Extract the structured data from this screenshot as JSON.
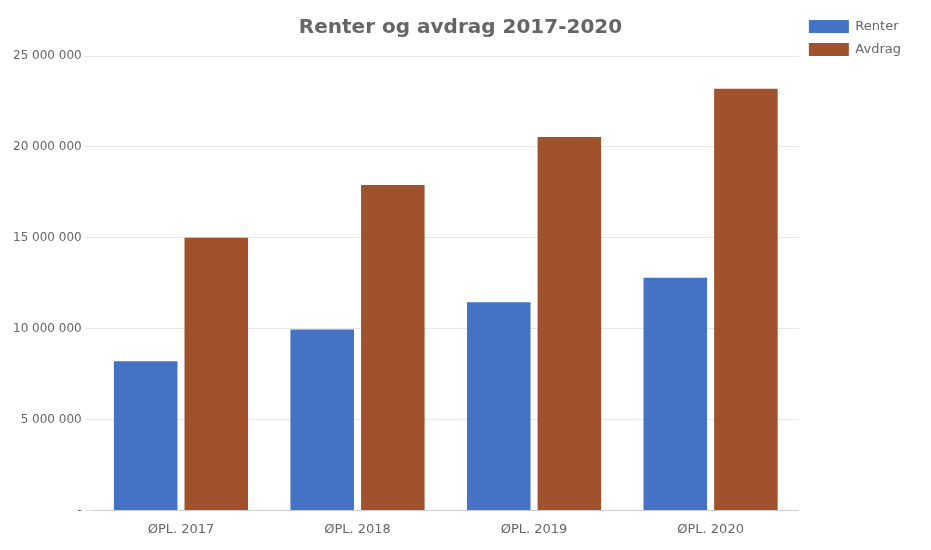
{
  "chart_data": {
    "type": "bar",
    "title": "Renter og avdrag 2017-2020",
    "categories": [
      "ØPL. 2017",
      "ØPL. 2018",
      "ØPL. 2019",
      "ØPL. 2020"
    ],
    "series": [
      {
        "name": "Renter",
        "color": "#4472C4",
        "values": [
          8200000,
          9950000,
          11450000,
          12800000
        ]
      },
      {
        "name": "Avdrag",
        "color": "#A0522D",
        "values": [
          15000000,
          17900000,
          20550000,
          23200000
        ]
      }
    ],
    "ylim": [
      0,
      25000000
    ],
    "yticks": [
      {
        "value": 0,
        "label": "-"
      },
      {
        "value": 5000000,
        "label": "5 000 000"
      },
      {
        "value": 10000000,
        "label": "10 000 000"
      },
      {
        "value": 15000000,
        "label": "15 000 000"
      },
      {
        "value": 20000000,
        "label": "20 000 000"
      },
      {
        "value": 25000000,
        "label": "25 000 000"
      }
    ],
    "grid": true,
    "legend": "right"
  }
}
